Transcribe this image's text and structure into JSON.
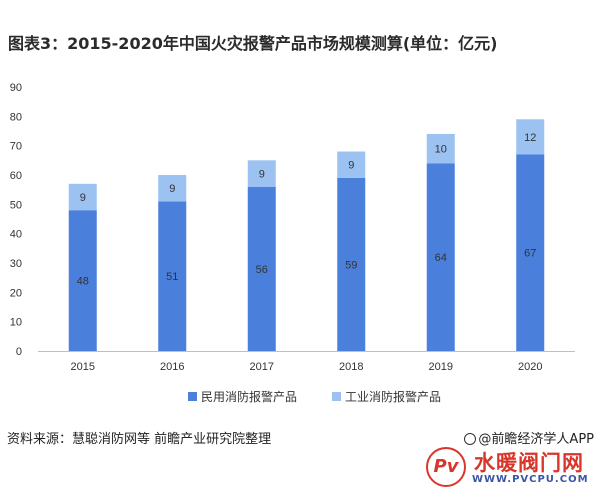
{
  "title": "图表3：2015-2020年中国火灾报警产品市场规模测算(单位：亿元)",
  "chart_data": {
    "type": "bar",
    "stacked": true,
    "categories": [
      "2015",
      "2016",
      "2017",
      "2018",
      "2019",
      "2020"
    ],
    "series": [
      {
        "name": "民用消防报警产品",
        "values": [
          48,
          51,
          56,
          59,
          64,
          67
        ],
        "color": "#4a7fdb"
      },
      {
        "name": "工业消防报警产品",
        "values": [
          9,
          9,
          9,
          9,
          10,
          12
        ],
        "color": "#9cc2f2"
      }
    ],
    "yticks": [
      0,
      10,
      20,
      30,
      40,
      50,
      60,
      70,
      80,
      90
    ],
    "ylim": [
      0,
      90
    ],
    "legend_position": "bottom",
    "grid": false
  },
  "source": "资料来源：慧聪消防网等 前瞻产业研究院整理",
  "brand": "@前瞻经济学人APP",
  "watermark": {
    "logo": "Pv",
    "text": "水暖阀门网",
    "url": "WWW.PVCPU.COM"
  }
}
